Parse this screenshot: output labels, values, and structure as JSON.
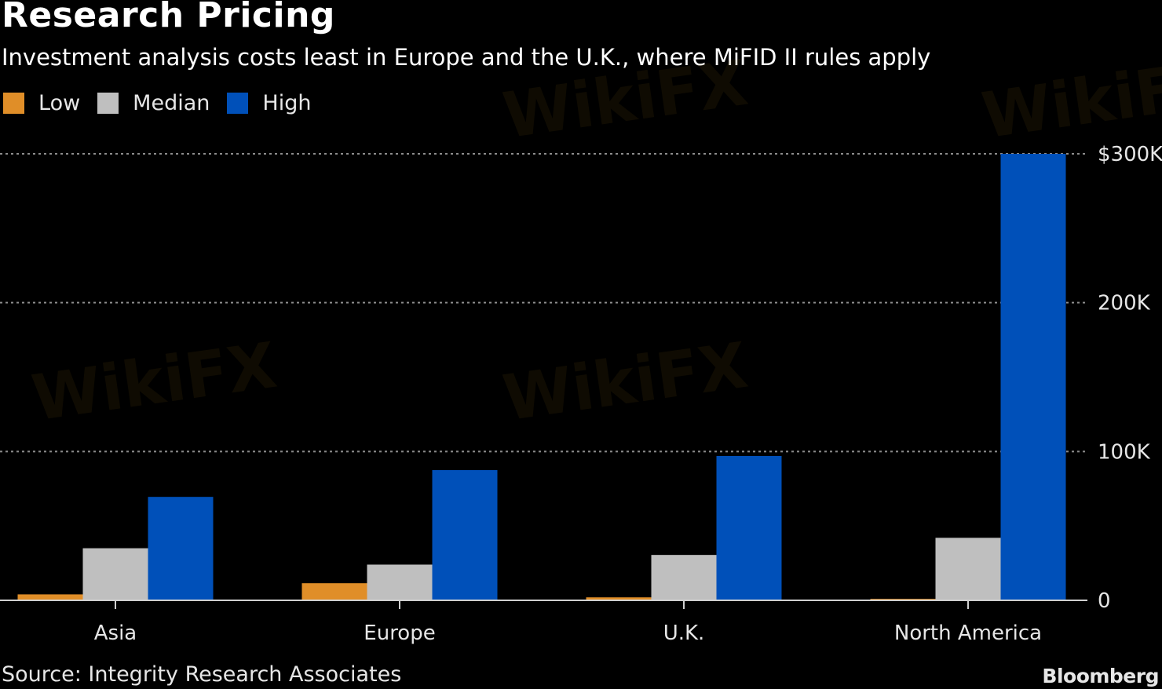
{
  "chart_data": {
    "type": "bar",
    "title": "Research Pricing",
    "subtitle": "Investment analysis costs least in Europe and the U.K., where MiFID II rules apply",
    "categories": [
      "Asia",
      "Europe",
      "U.K.",
      "North America"
    ],
    "series": [
      {
        "name": "Low",
        "color": "#e08e28",
        "values": [
          4000,
          11500,
          2000,
          1000
        ]
      },
      {
        "name": "Median",
        "color": "#bfbfbf",
        "values": [
          35000,
          24000,
          30500,
          42000
        ]
      },
      {
        "name": "High",
        "color": "#0050b9",
        "values": [
          69500,
          87500,
          97000,
          300000
        ]
      }
    ],
    "xlabel": "",
    "ylabel": "",
    "ylim": [
      0,
      300000
    ],
    "yticks": [
      {
        "value": 0,
        "label": "0"
      },
      {
        "value": 100000,
        "label": "100K"
      },
      {
        "value": 200000,
        "label": "200K"
      },
      {
        "value": 300000,
        "label": "$300K"
      }
    ],
    "grid": true,
    "y_axis_side": "right",
    "legend_position": "top-left",
    "source": "Source: Integrity Research Associates",
    "brand": "Bloomberg"
  },
  "watermark_text": "WikiFX"
}
